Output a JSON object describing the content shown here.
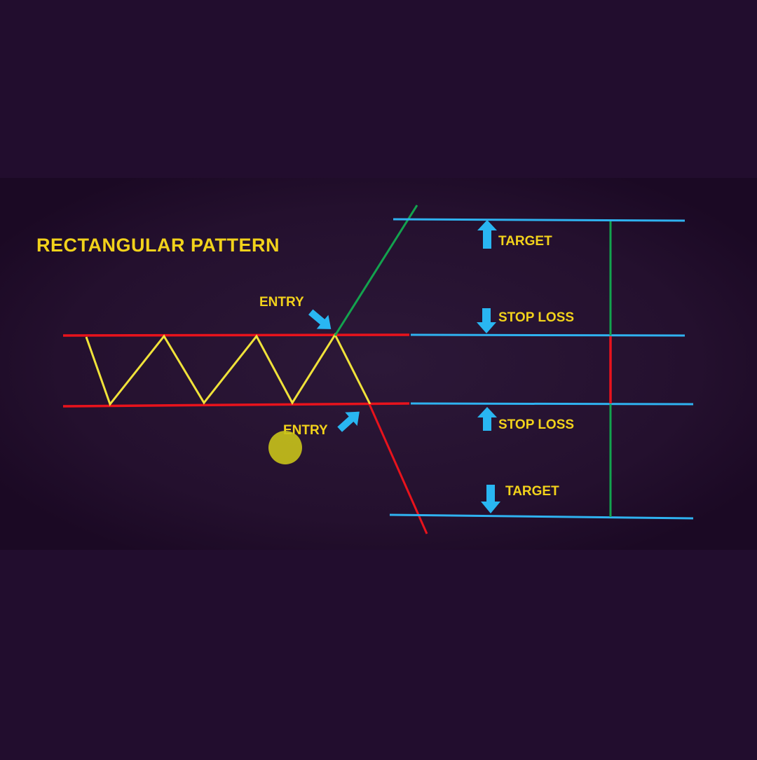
{
  "title": "RECTANGULAR PATTERN",
  "labels": {
    "entry_upper": "ENTRY",
    "entry_lower": "ENTRY",
    "target_upper": "TARGET",
    "stop_loss_upper": "STOP LOSS",
    "stop_loss_lower": "STOP LOSS",
    "target_lower": "TARGET"
  },
  "colors": {
    "page_background": "#220d2e",
    "panel_background": "#24102e",
    "title": "#f2d21b",
    "label": "#f2d21b",
    "resistance_support_lines": "#e8131c",
    "price_zigzag": "#f0e23a",
    "breakout_up": "#13a34e",
    "breakdown": "#e8131c",
    "level_lines": "#2fb2f0",
    "arrows": "#29b6f2",
    "marker_dot": "#c9c31a"
  },
  "icons": {
    "entry_arrows": "arrow-down-right-icon / arrow-up-right-icon",
    "level_arrows": "arrow-up-icon / arrow-down-icon"
  }
}
